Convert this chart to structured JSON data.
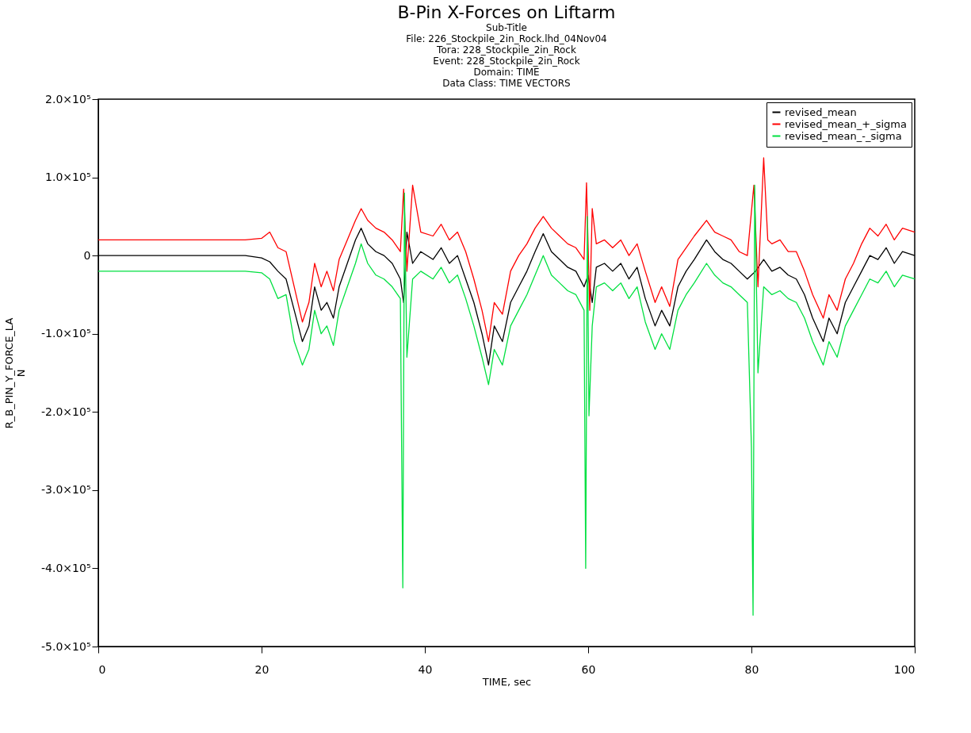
{
  "chart_data": {
    "type": "line",
    "title": "B-Pin X-Forces on Liftarm",
    "subtitle": "Sub-Title",
    "annotations": [
      "File:        226_Stockpile_2in_Rock.lhd_04Nov04",
      "Tora:         228_Stockpile_2in_Rock",
      "Event:        228_Stockpile_2in_Rock",
      "Domain:       TIME",
      "Data Class: TIME VECTORS"
    ],
    "xlabel": "TIME, sec",
    "ylabel": "R_B_PIN_Y_FORCE_LA\nN",
    "xlim": [
      0,
      100
    ],
    "xticks": [
      0,
      20,
      40,
      60,
      80,
      100
    ],
    "ylim": [
      -500000,
      200000
    ],
    "yticks": [
      {
        "value": -500000,
        "label": "-5.0×10⁵"
      },
      {
        "value": -400000,
        "label": "-4.0×10⁵"
      },
      {
        "value": -300000,
        "label": "-3.0×10⁵"
      },
      {
        "value": -200000,
        "label": "-2.0×10⁵"
      },
      {
        "value": -100000,
        "label": "-1.0×10⁵"
      },
      0,
      {
        "value": 100000,
        "label": "1.0×10⁵"
      },
      {
        "value": 200000,
        "label": "2.0×10⁵"
      }
    ],
    "grid": false,
    "legend": "top right",
    "line_style": "solid",
    "marker": "none",
    "series": [
      {
        "name": "revised_mean",
        "color": "#000000",
        "x": [
          0,
          5,
          10,
          15,
          18,
          20,
          21,
          22,
          23,
          24,
          25,
          25.8,
          26.5,
          27.3,
          28,
          28.8,
          29.5,
          30.5,
          31.5,
          32.2,
          33,
          34,
          35,
          36,
          37,
          37.4,
          37.8,
          38.5,
          39.5,
          41,
          42,
          43,
          44,
          45,
          46,
          47,
          47.8,
          48.5,
          49.5,
          50.5,
          51.5,
          52.5,
          53.5,
          54.5,
          55.5,
          56.5,
          57.5,
          58.5,
          59.5,
          60,
          60.5,
          61,
          62,
          63,
          64,
          65,
          66,
          67,
          68.2,
          69,
          70,
          71,
          72,
          73,
          74.5,
          75.5,
          76.5,
          77.5,
          78.5,
          79.5,
          80.5,
          81.5,
          82.5,
          83.5,
          84.5,
          85.5,
          86.5,
          87.5,
          88.8,
          89.5,
          90.5,
          91.5,
          92.5,
          93.5,
          94.5,
          95.5,
          96.5,
          97.5,
          98.5,
          100
        ],
        "values": [
          0,
          0,
          0,
          0,
          0,
          -3000,
          -8000,
          -20000,
          -30000,
          -70000,
          -110000,
          -90000,
          -40000,
          -70000,
          -60000,
          -80000,
          -40000,
          -10000,
          20000,
          35000,
          15000,
          5000,
          0,
          -10000,
          -30000,
          -60000,
          30000,
          -10000,
          5000,
          -5000,
          10000,
          -10000,
          0,
          -30000,
          -60000,
          -100000,
          -140000,
          -90000,
          -110000,
          -60000,
          -40000,
          -20000,
          5000,
          28000,
          5000,
          -5000,
          -15000,
          -20000,
          -40000,
          -25000,
          -60000,
          -15000,
          -10000,
          -20000,
          -10000,
          -30000,
          -15000,
          -55000,
          -90000,
          -70000,
          -90000,
          -40000,
          -20000,
          -5000,
          20000,
          5000,
          -5000,
          -10000,
          -20000,
          -30000,
          -20000,
          -5000,
          -20000,
          -15000,
          -25000,
          -30000,
          -50000,
          -80000,
          -110000,
          -80000,
          -100000,
          -60000,
          -40000,
          -20000,
          0,
          -5000,
          10000,
          -10000,
          5000,
          0
        ]
      },
      {
        "name": "revised_mean_+_sigma",
        "color": "#ff0000",
        "x": [
          0,
          18,
          20,
          21,
          22,
          23,
          24,
          25,
          25.8,
          26.5,
          27.3,
          28,
          28.8,
          29.5,
          30.5,
          31.5,
          32.2,
          33,
          34,
          35,
          36,
          37,
          37.4,
          37.8,
          38.5,
          39.5,
          41,
          42,
          43,
          44,
          45,
          46,
          47,
          47.8,
          48.5,
          49.5,
          50.5,
          51.5,
          52.5,
          53.5,
          54.5,
          55.5,
          56.5,
          57.5,
          58.5,
          59.5,
          59.8,
          60.2,
          60.5,
          61,
          62,
          63,
          64,
          65,
          66,
          67,
          68.2,
          69,
          70,
          71,
          72,
          73,
          74.5,
          75.5,
          76.5,
          77.5,
          78.5,
          79.5,
          80.3,
          80.8,
          81.5,
          82,
          82.5,
          83.5,
          84.5,
          85.5,
          86.5,
          87.5,
          88.8,
          89.5,
          90.5,
          91.5,
          92.5,
          93.5,
          94.5,
          95.5,
          96.5,
          97.5,
          98.5,
          100
        ],
        "values": [
          20000,
          20000,
          22000,
          30000,
          10000,
          5000,
          -40000,
          -85000,
          -60000,
          -10000,
          -40000,
          -20000,
          -45000,
          -5000,
          20000,
          45000,
          60000,
          45000,
          35000,
          30000,
          20000,
          5000,
          85000,
          -20000,
          90000,
          30000,
          25000,
          40000,
          20000,
          30000,
          5000,
          -30000,
          -70000,
          -110000,
          -60000,
          -75000,
          -20000,
          0,
          15000,
          35000,
          50000,
          35000,
          25000,
          15000,
          10000,
          -5000,
          93000,
          -70000,
          60000,
          15000,
          20000,
          10000,
          20000,
          0,
          15000,
          -20000,
          -60000,
          -40000,
          -65000,
          -5000,
          10000,
          25000,
          45000,
          30000,
          25000,
          20000,
          5000,
          0,
          90000,
          -40000,
          125000,
          20000,
          15000,
          20000,
          5000,
          5000,
          -20000,
          -50000,
          -80000,
          -50000,
          -70000,
          -30000,
          -10000,
          15000,
          35000,
          25000,
          40000,
          20000,
          35000,
          30000
        ]
      },
      {
        "name": "revised_mean_-_sigma",
        "color": "#00e040",
        "x": [
          0,
          18,
          20,
          21,
          22,
          23,
          24,
          25,
          25.8,
          26.5,
          27.3,
          28,
          28.8,
          29.5,
          30.5,
          31.5,
          32.2,
          33,
          34,
          35,
          36,
          37,
          37.3,
          37.5,
          37.8,
          38.5,
          39.5,
          41,
          42,
          43,
          44,
          45,
          46,
          47,
          47.8,
          48.5,
          49.5,
          50.5,
          51.5,
          52.5,
          53.5,
          54.5,
          55.5,
          56.5,
          57.5,
          58.5,
          59.5,
          59.7,
          59.9,
          60.1,
          60.5,
          61,
          62,
          63,
          64,
          65,
          66,
          67,
          68.2,
          69,
          70,
          71,
          72,
          73,
          74.5,
          75.5,
          76.5,
          77.5,
          78.5,
          79.5,
          80,
          80.2,
          80.4,
          80.8,
          81.5,
          82.5,
          83.5,
          84.5,
          85.5,
          86.5,
          87.5,
          88.8,
          89.5,
          90.5,
          91.5,
          92.5,
          93.5,
          94.5,
          95.5,
          96.5,
          97.5,
          98.5,
          100
        ],
        "values": [
          -20000,
          -20000,
          -22000,
          -30000,
          -55000,
          -50000,
          -110000,
          -140000,
          -120000,
          -70000,
          -100000,
          -90000,
          -115000,
          -70000,
          -40000,
          -10000,
          15000,
          -10000,
          -25000,
          -30000,
          -40000,
          -55000,
          -425000,
          80000,
          -130000,
          -30000,
          -20000,
          -30000,
          -15000,
          -35000,
          -25000,
          -55000,
          -90000,
          -130000,
          -165000,
          -120000,
          -140000,
          -90000,
          -70000,
          -50000,
          -25000,
          0,
          -25000,
          -35000,
          -45000,
          -50000,
          -70000,
          -400000,
          50000,
          -205000,
          -90000,
          -40000,
          -35000,
          -45000,
          -35000,
          -55000,
          -40000,
          -85000,
          -120000,
          -100000,
          -120000,
          -70000,
          -50000,
          -35000,
          -10000,
          -25000,
          -35000,
          -40000,
          -50000,
          -60000,
          -245000,
          -460000,
          90000,
          -150000,
          -40000,
          -50000,
          -45000,
          -55000,
          -60000,
          -80000,
          -110000,
          -140000,
          -110000,
          -130000,
          -90000,
          -70000,
          -50000,
          -30000,
          -35000,
          -20000,
          -40000,
          -25000,
          -30000
        ]
      }
    ]
  }
}
